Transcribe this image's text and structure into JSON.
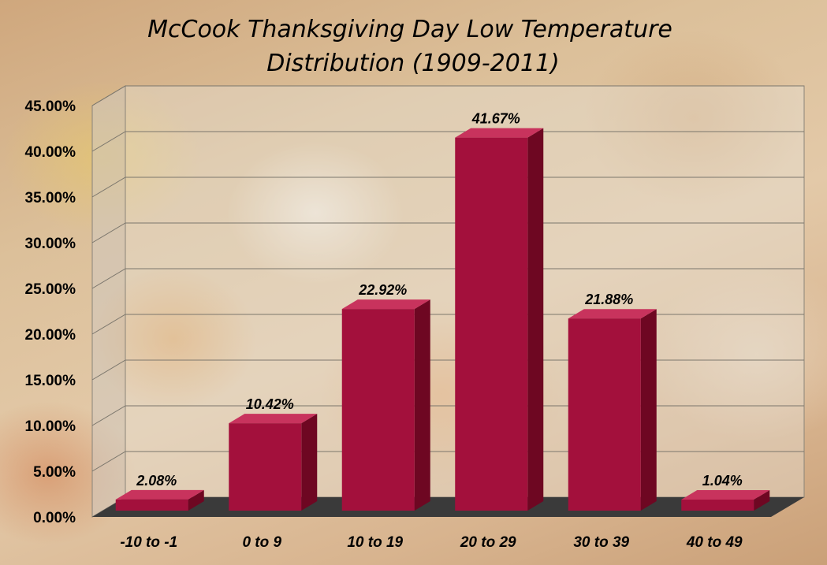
{
  "chart_data": {
    "type": "bar",
    "title_lines": [
      "McCook Thanksgiving Day Low Temperature",
      "Distribution (1909-2011)"
    ],
    "categories": [
      "-10 to -1",
      "0 to 9",
      "10 to 19",
      "20 to 29",
      "30 to 39",
      "40 to 49"
    ],
    "values": [
      2.08,
      10.42,
      22.92,
      41.67,
      21.88,
      1.04
    ],
    "data_labels": [
      "2.08%",
      "10.42%",
      "22.92%",
      "41.67%",
      "21.88%",
      "1.04%"
    ],
    "y_ticks": [
      "0.00%",
      "5.00%",
      "10.00%",
      "15.00%",
      "20.00%",
      "25.00%",
      "30.00%",
      "35.00%",
      "40.00%",
      "45.00%"
    ],
    "ylim": [
      0,
      45
    ],
    "ytick_step": 5,
    "xlabel": "",
    "ylabel": "",
    "grid": true,
    "legend": false,
    "style": "3d-column",
    "colors": {
      "bar_front": "#a3103c",
      "bar_top": "#c8335d",
      "bar_side": "#6e0722",
      "floor": "#3a3a3a",
      "back_wall": "#e8e4dc",
      "side_wall": "#cfc9bf"
    }
  }
}
